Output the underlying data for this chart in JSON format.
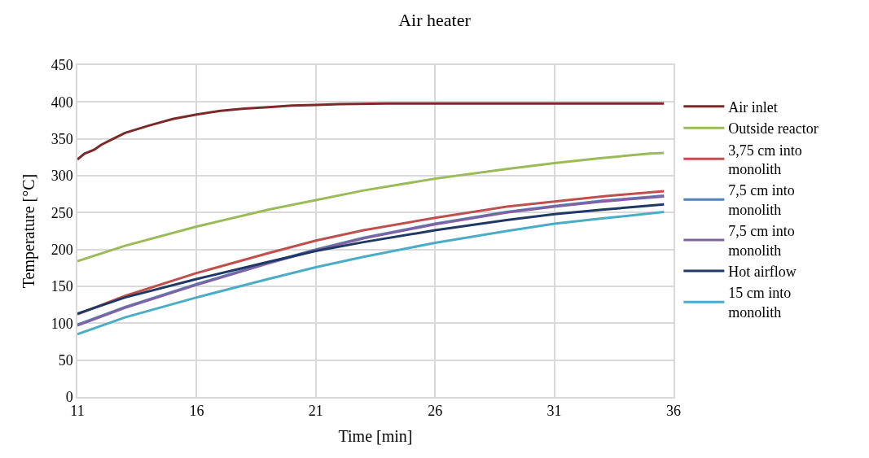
{
  "chart_data": {
    "type": "line",
    "title": "Air heater",
    "xlabel": "Time [min]",
    "ylabel": "Temperature [°C]",
    "xlim": [
      11,
      36
    ],
    "xticks": [
      11,
      16,
      21,
      26,
      31,
      36
    ],
    "ylim": [
      0,
      450
    ],
    "yticks": [
      0,
      50,
      100,
      150,
      200,
      250,
      300,
      350,
      400,
      450
    ],
    "grid": true,
    "legend": "right",
    "marker": "none",
    "line_style": "solid",
    "series": [
      {
        "name": "Air inlet",
        "color": "#7b2a2a",
        "x": [
          11,
          11.3,
          11.7,
          12,
          12.5,
          13,
          14,
          15,
          16,
          17,
          18,
          19,
          20,
          21,
          22,
          24,
          26,
          28,
          30,
          32,
          34,
          35.6
        ],
        "values": [
          322,
          330,
          335,
          342,
          350,
          358,
          368,
          377,
          383,
          388,
          391,
          393,
          395,
          396,
          397,
          398,
          398,
          398,
          398,
          398,
          398,
          398
        ]
      },
      {
        "name": "Outside reactor",
        "color": "#9bbb59",
        "x": [
          11,
          13,
          16,
          19,
          21,
          23,
          26,
          29,
          31,
          33,
          35,
          35.6
        ],
        "values": [
          184,
          205,
          231,
          254,
          267,
          280,
          296,
          309,
          317,
          324,
          330,
          331
        ]
      },
      {
        "name": "3,75 cm into monolith",
        "color": "#c0504d",
        "x": [
          11,
          13,
          16,
          19,
          21,
          23,
          26,
          29,
          31,
          33,
          35.6
        ],
        "values": [
          112,
          137,
          168,
          195,
          212,
          226,
          243,
          258,
          265,
          272,
          279
        ]
      },
      {
        "name": "7,5 cm into monolith",
        "color": "#4f81bd",
        "x": [
          11,
          13,
          16,
          19,
          21,
          23,
          26,
          29,
          31,
          33,
          35.6
        ],
        "values": [
          98,
          122,
          153,
          182,
          200,
          216,
          235,
          251,
          259,
          266,
          273
        ]
      },
      {
        "name": "7,5 cm into monolith",
        "color": "#8064a2",
        "x": [
          11,
          13,
          16,
          19,
          21,
          23,
          26,
          29,
          31,
          33,
          35.6
        ],
        "values": [
          97,
          121,
          152,
          181,
          199,
          215,
          234,
          250,
          258,
          265,
          272
        ]
      },
      {
        "name": "Hot airflow",
        "color": "#1f3864",
        "x": [
          11,
          13,
          16,
          19,
          21,
          23,
          26,
          29,
          31,
          33,
          35.6
        ],
        "values": [
          113,
          135,
          160,
          183,
          198,
          210,
          226,
          240,
          248,
          254,
          261
        ]
      },
      {
        "name": "15 cm into monolith",
        "color": "#4bacc6",
        "x": [
          11,
          13,
          16,
          19,
          21,
          23,
          26,
          29,
          31,
          33,
          35.6
        ],
        "values": [
          85,
          108,
          135,
          160,
          176,
          190,
          209,
          225,
          235,
          242,
          251
        ]
      }
    ]
  }
}
